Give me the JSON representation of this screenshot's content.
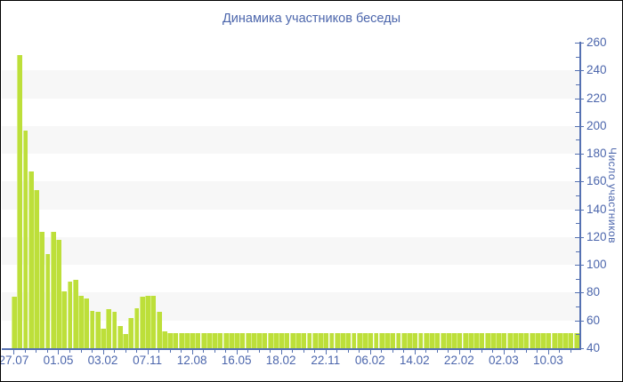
{
  "title": "Динамика участников беседы",
  "chart_data": {
    "type": "bar",
    "title": "Динамика участников беседы",
    "xlabel": "",
    "ylabel": "Число участников",
    "ylim": [
      40,
      260
    ],
    "y_tick_step": 20,
    "y_minor_tick_step": 10,
    "y_ticks": [
      40,
      60,
      80,
      100,
      120,
      140,
      160,
      180,
      200,
      220,
      240,
      260
    ],
    "y_axis_side": "right",
    "legend": "none",
    "grid": "alternating-horizontal-bands",
    "x_tick_labels": [
      "27.07",
      "01.05",
      "03.02",
      "07.11",
      "12.08",
      "16.05",
      "18.02",
      "22.11",
      "06.02",
      "14.02",
      "22.02",
      "02.03",
      "10.03"
    ],
    "x_label_every": 8,
    "values": [
      77,
      251,
      197,
      167,
      154,
      124,
      108,
      124,
      118,
      81,
      88,
      89,
      78,
      76,
      67,
      66,
      54,
      68,
      66,
      56,
      50,
      62,
      69,
      77,
      78,
      78,
      66,
      52,
      51,
      51,
      51,
      51,
      51,
      51,
      51,
      51,
      51,
      51,
      51,
      51,
      51,
      51,
      51,
      51,
      51,
      51,
      51,
      51,
      51,
      51,
      51,
      51,
      51,
      51,
      51,
      51,
      51,
      51,
      51,
      51,
      51,
      51,
      51,
      51,
      51,
      51,
      51,
      51,
      51,
      51,
      51,
      51,
      51,
      51,
      51,
      51,
      51,
      51,
      51,
      51,
      51,
      51,
      51,
      51,
      51,
      51,
      51,
      51,
      51,
      51,
      51,
      51,
      51,
      51,
      51,
      51,
      51,
      51,
      51,
      51,
      51,
      51
    ]
  },
  "colors": {
    "bar": "#bddf3a",
    "bar_edge": "#d7ee85",
    "axis": "#5571b2",
    "text": "#4c66ac",
    "band": "#f7f7f7",
    "background": "#ffffff",
    "border": "#000000"
  }
}
